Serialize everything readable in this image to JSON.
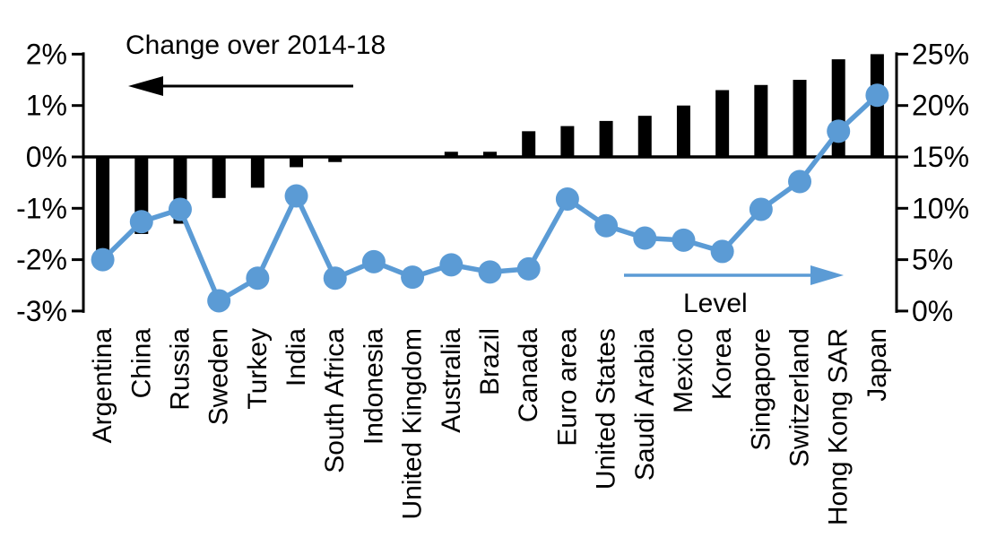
{
  "chart_data": {
    "type": "bar",
    "subtype": "combo-bar-line-dual-axis",
    "categories": [
      "Argentina",
      "China",
      "Russia",
      "Sweden",
      "Turkey",
      "India",
      "South Africa",
      "Indonesia",
      "United Kingdom",
      "Australia",
      "Brazil",
      "Canada",
      "Euro area",
      "United States",
      "Saudi Arabia",
      "Mexico",
      "Korea",
      "Singapore",
      "Switzerland",
      "Hong Kong SAR",
      "Japan"
    ],
    "series": [
      {
        "name": "Change over 2014-18",
        "type": "bar",
        "axis": "left",
        "color": "#000000",
        "values": [
          -1.9,
          -1.5,
          -1.3,
          -0.8,
          -0.6,
          -0.2,
          -0.1,
          0,
          0,
          0.1,
          0.1,
          0.5,
          0.6,
          0.7,
          0.8,
          1.0,
          1.3,
          1.4,
          1.5,
          1.9,
          2.0
        ]
      },
      {
        "name": "Level",
        "type": "line",
        "axis": "right",
        "color": "#5b9bd5",
        "values": [
          5.0,
          8.7,
          9.9,
          1.0,
          3.2,
          11.2,
          3.2,
          4.8,
          3.3,
          4.5,
          3.8,
          4.1,
          10.9,
          8.3,
          7.1,
          6.9,
          5.8,
          9.9,
          12.6,
          17.5,
          21.0
        ]
      }
    ],
    "left_axis": {
      "min": -3,
      "max": 2,
      "tick_values": [
        2,
        1,
        0,
        -1,
        -2,
        -3
      ],
      "tick_labels": [
        "2%",
        "1%",
        "0%",
        "-1%",
        "-2%",
        "-3%"
      ]
    },
    "right_axis": {
      "min": 0,
      "max": 25,
      "tick_values": [
        25,
        20,
        15,
        10,
        5,
        0
      ],
      "tick_labels": [
        "25%",
        "20%",
        "15%",
        "10%",
        "5%",
        "0%"
      ]
    },
    "annotations": {
      "bar_label": "Change over 2014-18",
      "line_label": "Level",
      "bar_arrow_direction": "left",
      "line_arrow_direction": "right"
    },
    "layout_hints": {
      "grid": "off",
      "legend": "arrows-inside-plot",
      "category_labels_rotated_90": true
    },
    "colors": {
      "bar": "#000000",
      "line": "#5b9bd5",
      "background": "#ffffff"
    }
  }
}
